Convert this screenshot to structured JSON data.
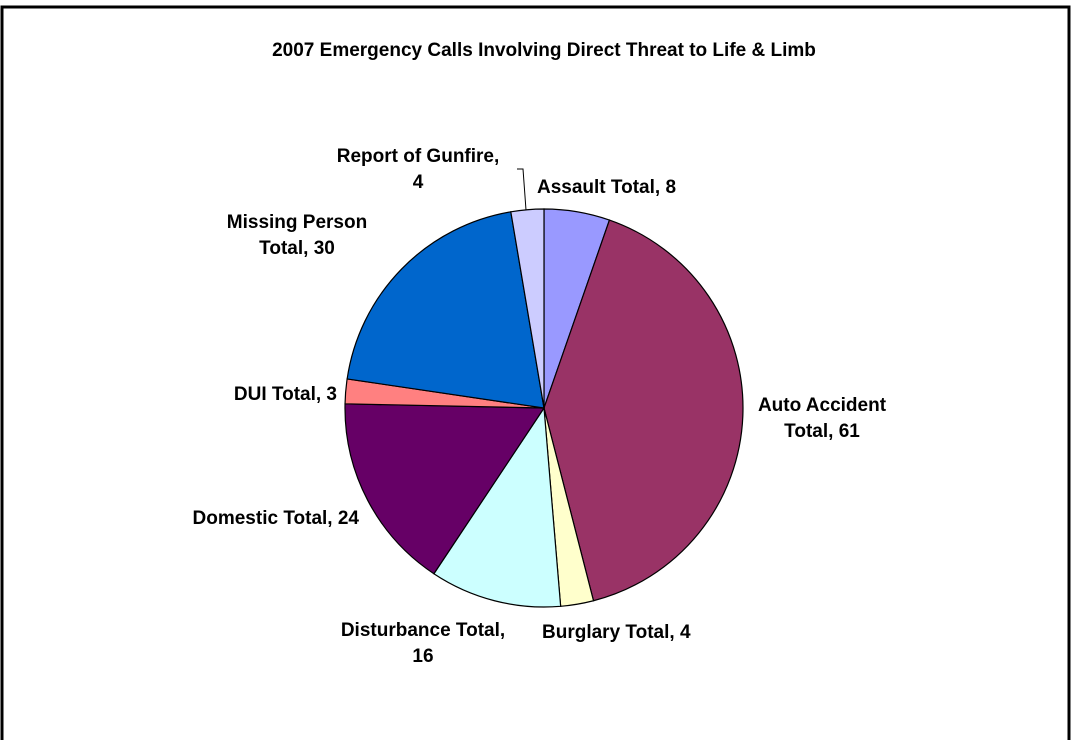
{
  "chart_data": {
    "type": "pie",
    "title": "2007 Emergency Calls Involving Direct Threat to Life & Limb",
    "slices": [
      {
        "category": "Assault Total",
        "value": 8,
        "label": "Assault Total, 8",
        "label_lines": [
          "Assault Total, 8"
        ],
        "color": "#9999ff"
      },
      {
        "category": "Auto Accident Total",
        "value": 61,
        "label": "Auto Accident Total, 61",
        "label_lines": [
          "Auto Accident",
          "Total, 61"
        ],
        "color": "#993366"
      },
      {
        "category": "Burglary Total",
        "value": 4,
        "label": "Burglary Total, 4",
        "label_lines": [
          "Burglary Total, 4"
        ],
        "color": "#ffffcc"
      },
      {
        "category": "Disturbance Total",
        "value": 16,
        "label": "Disturbance Total, 16",
        "label_lines": [
          "Disturbance Total,",
          "16"
        ],
        "color": "#ccffff"
      },
      {
        "category": "Domestic Total",
        "value": 24,
        "label": "Domestic Total, 24",
        "label_lines": [
          "Domestic Total, 24"
        ],
        "color": "#660066"
      },
      {
        "category": "DUI Total",
        "value": 3,
        "label": "DUI Total, 3",
        "label_lines": [
          "DUI Total, 3"
        ],
        "color": "#ff8080"
      },
      {
        "category": "Missing Person Total",
        "value": 30,
        "label": "Missing Person Total, 30",
        "label_lines": [
          "Missing Person",
          "Total, 30"
        ],
        "color": "#0066cc"
      },
      {
        "category": "Report of Gunfire",
        "value": 4,
        "label": "Report of Gunfire, 4",
        "label_lines": [
          "Report of Gunfire,",
          "4"
        ],
        "color": "#ccccff"
      }
    ],
    "start_angle": "12 o'clock",
    "direction": "clockwise",
    "legend": "none",
    "slice_outline_color": "#000000"
  }
}
